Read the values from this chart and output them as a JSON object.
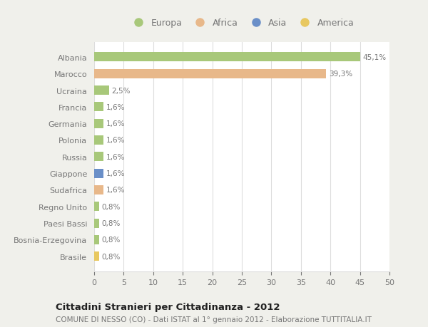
{
  "categories": [
    "Albania",
    "Marocco",
    "Ucraina",
    "Francia",
    "Germania",
    "Polonia",
    "Russia",
    "Giappone",
    "Sudafrica",
    "Regno Unito",
    "Paesi Bassi",
    "Bosnia-Erzegovina",
    "Brasile"
  ],
  "values": [
    45.1,
    39.3,
    2.5,
    1.6,
    1.6,
    1.6,
    1.6,
    1.6,
    1.6,
    0.8,
    0.8,
    0.8,
    0.8
  ],
  "labels": [
    "45,1%",
    "39,3%",
    "2,5%",
    "1,6%",
    "1,6%",
    "1,6%",
    "1,6%",
    "1,6%",
    "1,6%",
    "0,8%",
    "0,8%",
    "0,8%",
    "0,8%"
  ],
  "continent": [
    "Europa",
    "Africa",
    "Europa",
    "Europa",
    "Europa",
    "Europa",
    "Europa",
    "Asia",
    "Africa",
    "Europa",
    "Europa",
    "Europa",
    "America"
  ],
  "colors": {
    "Europa": "#a8c87a",
    "Africa": "#e8b88a",
    "Asia": "#6a8fc8",
    "America": "#e8c860"
  },
  "legend_order": [
    "Europa",
    "Africa",
    "Asia",
    "America"
  ],
  "legend_colors": [
    "#a8c87a",
    "#e8b88a",
    "#6a8fc8",
    "#e8c860"
  ],
  "xlim": [
    0,
    50
  ],
  "xticks": [
    0,
    5,
    10,
    15,
    20,
    25,
    30,
    35,
    40,
    45,
    50
  ],
  "title": "Cittadini Stranieri per Cittadinanza - 2012",
  "subtitle": "COMUNE DI NESSO (CO) - Dati ISTAT al 1° gennaio 2012 - Elaborazione TUTTITALIA.IT",
  "bg_color": "#f0f0eb",
  "plot_bg_color": "#ffffff",
  "grid_color": "#dddddd",
  "text_color": "#777777",
  "title_color": "#222222"
}
